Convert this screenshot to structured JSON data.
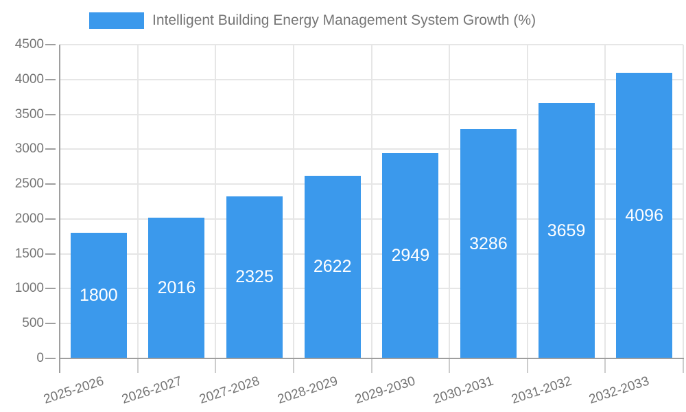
{
  "chart": {
    "legend_label": "Intelligent Building Energy Management System Growth (%)",
    "colors": {
      "bar": "#3B99EC",
      "grid": "#E6E6E6",
      "axis": "#9E9E9E",
      "x_tick": "#CCCCCC",
      "text": "#757575",
      "value_label": "#FFFFFF",
      "background": "#FFFFFF"
    }
  },
  "chart_data": {
    "type": "bar",
    "title": "Intelligent Building Energy Management System Growth (%)",
    "categories": [
      "2025-2026",
      "2026-2027",
      "2027-2028",
      "2028-2029",
      "2029-2030",
      "2030-2031",
      "2031-2032",
      "2032-2033"
    ],
    "values": [
      1800,
      2016,
      2325,
      2622,
      2949,
      3286,
      3659,
      4096
    ],
    "bar_value_labels": [
      "1800",
      "2016",
      "2325",
      "2622",
      "2949",
      "3286",
      "3659",
      "4096"
    ],
    "xlabel": "",
    "ylabel": "",
    "ylim": [
      0,
      4500
    ],
    "yticks": [
      0,
      500,
      1000,
      1500,
      2000,
      2500,
      3000,
      3500,
      4000,
      4500
    ],
    "grid": true,
    "legend_position": "top",
    "value_labels_inside_bars": true,
    "x_label_rotation_deg": -18
  }
}
